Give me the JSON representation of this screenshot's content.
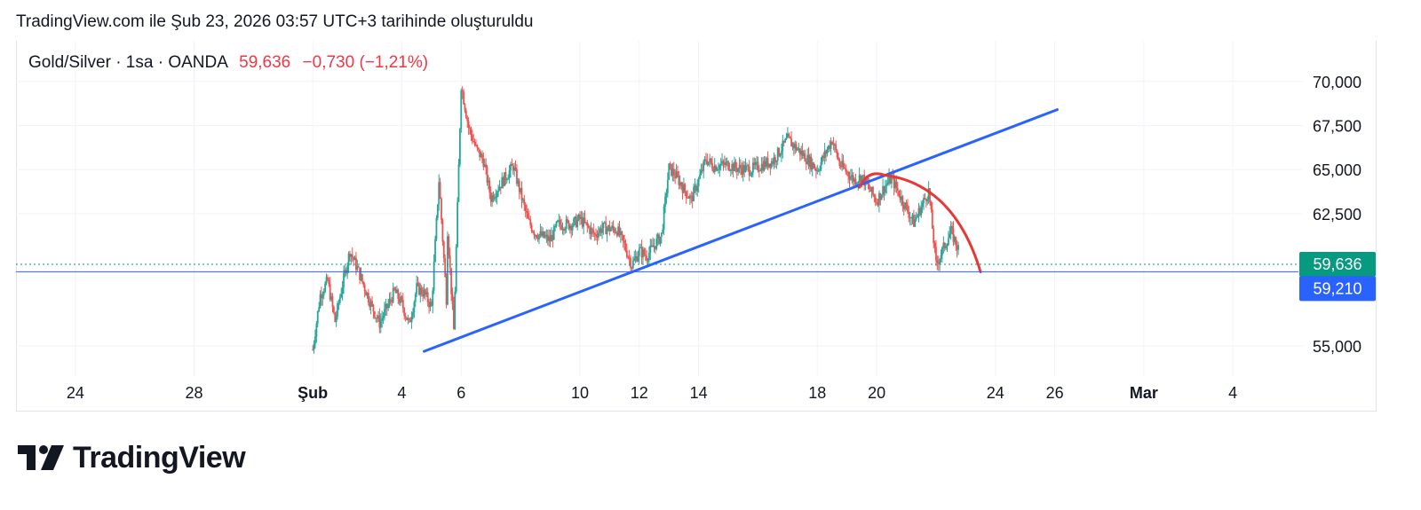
{
  "header": {
    "caption": "TradingView.com ile Şub 23, 2026 03:57 UTC+3 tarihinde oluşturuldu"
  },
  "legend": {
    "symbol": "Gold/Silver · 1sa · OANDA",
    "price": "59,636",
    "change": "−0,730 (−1,21%)"
  },
  "brand": {
    "logo_text": "TradingView",
    "logo_icon": "tradingview-logo-icon"
  },
  "colors": {
    "up": "#26a69a",
    "down": "#ef5350",
    "trendline": "#2962ff",
    "curve": "#e53935",
    "price_badge": "#089981",
    "line_badge": "#2962ff"
  },
  "chart_data": {
    "type": "candlestick",
    "symbol": "Gold/Silver",
    "interval": "1sa",
    "exchange": "OANDA",
    "x_tick_labels": [
      "24",
      "28",
      "Şub",
      "4",
      "6",
      "10",
      "12",
      "14",
      "18",
      "20",
      "24",
      "26",
      "Mar",
      "4"
    ],
    "y_tick_labels": [
      "70,000",
      "67,500",
      "65,000",
      "62,500",
      "55,000"
    ],
    "y_ticks": [
      70000,
      67500,
      65000,
      62500,
      55000
    ],
    "ylim": [
      53300,
      72300
    ],
    "xlim": [
      "2026-01-22",
      "2026-03-06"
    ],
    "grid": true,
    "last_price": 59636,
    "last_price_label": "59,636",
    "horizontal_line": 59210,
    "horizontal_line_label": "59,210",
    "series_path": [
      [
        "2026-02-01",
        54800
      ],
      [
        "2026-02-01",
        57900
      ],
      [
        "2026-02-01",
        58700
      ],
      [
        "2026-02-01",
        56400
      ],
      [
        "2026-02-02",
        58500
      ],
      [
        "2026-02-02",
        60400
      ],
      [
        "2026-02-02",
        59400
      ],
      [
        "2026-02-03",
        58100
      ],
      [
        "2026-02-03",
        57200
      ],
      [
        "2026-02-03",
        56300
      ],
      [
        "2026-02-04",
        58300
      ],
      [
        "2026-02-04",
        58000
      ],
      [
        "2026-02-04",
        57400
      ],
      [
        "2026-02-04",
        56200
      ],
      [
        "2026-02-05",
        57700
      ],
      [
        "2026-02-05",
        55900
      ],
      [
        "2026-02-05",
        57200
      ],
      [
        "2026-02-05",
        64400
      ],
      [
        "2026-02-05",
        62700
      ],
      [
        "2026-02-06",
        65500
      ],
      [
        "2026-02-06",
        69800
      ],
      [
        "2026-02-06",
        67400
      ],
      [
        "2026-02-06",
        66200
      ],
      [
        "2026-02-07",
        65200
      ],
      [
        "2026-02-07",
        63400
      ],
      [
        "2026-02-08",
        62100
      ],
      [
        "2026-02-08",
        61400
      ],
      [
        "2026-02-09",
        61900
      ],
      [
        "2026-02-09",
        61000
      ],
      [
        "2026-02-09",
        61900
      ],
      [
        "2026-02-10",
        61300
      ],
      [
        "2026-02-10",
        61700
      ],
      [
        "2026-02-10",
        62200
      ],
      [
        "2026-02-11",
        61600
      ],
      [
        "2026-02-11",
        60700
      ],
      [
        "2026-02-11",
        59600
      ],
      [
        "2026-02-12",
        60400
      ],
      [
        "2026-02-12",
        60100
      ],
      [
        "2026-02-12",
        60700
      ],
      [
        "2026-02-12",
        61300
      ],
      [
        "2026-02-13",
        65100
      ],
      [
        "2026-02-13",
        64600
      ],
      [
        "2026-02-13",
        63900
      ],
      [
        "2026-02-13",
        63300
      ],
      [
        "2026-02-14",
        64400
      ],
      [
        "2026-02-14",
        65600
      ],
      [
        "2026-02-14",
        65200
      ],
      [
        "2026-02-15",
        65000
      ],
      [
        "2026-02-15",
        65300
      ],
      [
        "2026-02-15",
        65100
      ],
      [
        "2026-02-16",
        65500
      ],
      [
        "2026-02-16",
        66100
      ],
      [
        "2026-02-17",
        66700
      ],
      [
        "2026-02-17",
        66300
      ],
      [
        "2026-02-18",
        66700
      ],
      [
        "2026-02-18",
        65300
      ],
      [
        "2026-02-18",
        65000
      ],
      [
        "2026-02-19",
        64400
      ],
      [
        "2026-02-19",
        64600
      ],
      [
        "2026-02-19",
        63900
      ],
      [
        "2026-02-20",
        63200
      ],
      [
        "2026-02-20",
        64000
      ],
      [
        "2026-02-20",
        64500
      ],
      [
        "2026-02-21",
        63800
      ],
      [
        "2026-02-21",
        62800
      ],
      [
        "2026-02-21",
        62000
      ],
      [
        "2026-02-22",
        61500
      ],
      [
        "2026-02-22",
        60500
      ],
      [
        "2026-02-22",
        59600
      ]
    ],
    "drawings": [
      {
        "type": "trendline",
        "from": [
          "2026-02-04 18:00",
          54700
        ],
        "to": [
          "2026-02-26 02:00",
          68400
        ]
      },
      {
        "type": "curve",
        "from": [
          "2026-02-19 10:00",
          64000
        ],
        "peak": [
          "2026-02-20 00:00",
          64700
        ],
        "to": [
          "2026-02-23 12:00",
          59200
        ]
      }
    ]
  }
}
